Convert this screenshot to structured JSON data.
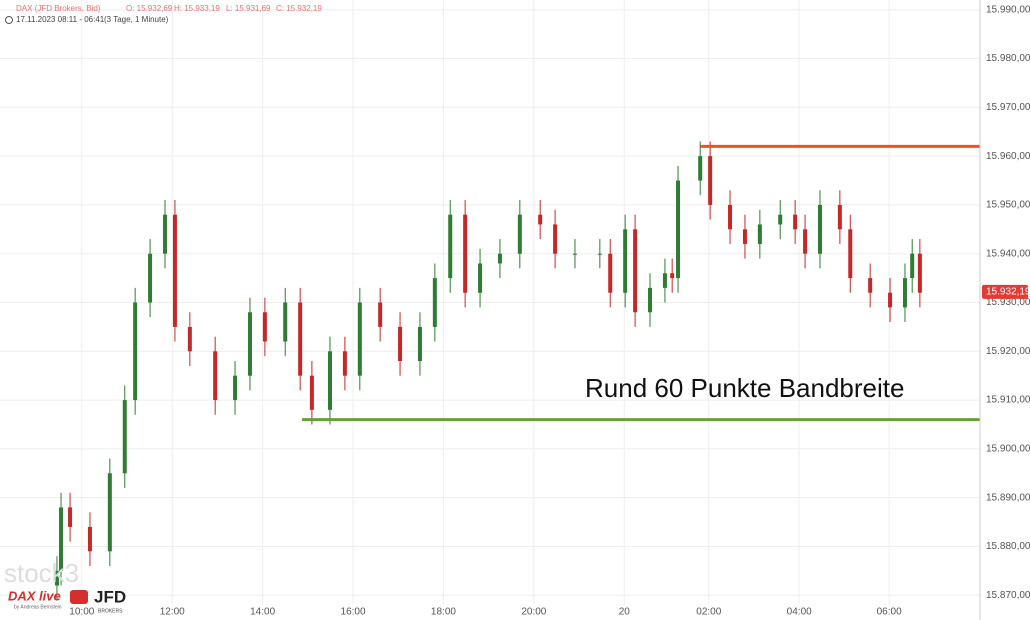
{
  "header": {
    "symbol": "DAX (JFD Brokers, Bid)",
    "open": "O: 15.932,69",
    "high": "H: 15.933,19",
    "low": "L: 15.931,69",
    "close": "C: 15.932,19",
    "range": "17.11.2023 08:11 - 06:41",
    "period": "(3 Tage, 1 Minute)"
  },
  "logos": {
    "stock": "stock3",
    "dax": "DAX live",
    "dax_sub": "by Andreas Bernstein",
    "jfd": "JFD",
    "jfd_sub": "BROKERS"
  },
  "chart_data": {
    "type": "candlestick",
    "x": [
      9.45,
      9.54,
      9.74,
      10.18,
      10.62,
      10.95,
      11.18,
      11.51,
      11.84,
      12.06,
      12.39,
      12.95,
      13.39,
      13.72,
      14.05,
      14.5,
      14.83,
      15.09,
      15.49,
      15.82,
      16.15,
      16.6,
      17.04,
      17.48,
      17.81,
      18.15,
      18.48,
      18.81,
      19.25,
      19.69,
      20.14,
      20.47,
      20.91,
      21.46,
      21.69,
      22.02,
      22.24,
      22.57,
      22.9,
      23.06,
      23.19,
      23.68,
      23.9,
      24.34,
      24.67,
      25.0,
      25.45,
      25.78,
      26.0,
      26.33,
      26.77,
      27.0,
      27.44,
      27.88,
      28.21,
      28.37,
      28.54
    ],
    "open": [
      15872,
      15875,
      15888,
      15884,
      15879,
      15895,
      15910,
      15930,
      15940,
      15948,
      15925,
      15920,
      15910,
      15915,
      15928,
      15922,
      15930,
      15915,
      15908,
      15920,
      15915,
      15930,
      15925,
      15918,
      15925,
      15935,
      15948,
      15932,
      15938,
      15940,
      15948,
      15946,
      15940,
      15940,
      15940,
      15932,
      15945,
      15928,
      15933,
      15936,
      15935,
      15955,
      15960,
      15950,
      15945,
      15942,
      15946,
      15948,
      15945,
      15940,
      15950,
      15945,
      15935,
      15932,
      15929,
      15935,
      15940
    ],
    "high": [
      15878,
      15891,
      15891,
      15887,
      15898,
      15913,
      15933,
      15943,
      15951,
      15951,
      15928,
      15923,
      15918,
      15931,
      15931,
      15933,
      15933,
      15918,
      15923,
      15923,
      15933,
      15933,
      15928,
      15928,
      15938,
      15951,
      15951,
      15941,
      15943,
      15951,
      15951,
      15949,
      15943,
      15943,
      15943,
      15948,
      15948,
      15936,
      15939,
      15939,
      15958,
      15963,
      15963,
      15953,
      15948,
      15949,
      15951,
      15951,
      15948,
      15953,
      15953,
      15948,
      15938,
      15935,
      15938,
      15943,
      15943
    ],
    "low": [
      15869,
      15872,
      15881,
      15876,
      15876,
      15892,
      15907,
      15927,
      15937,
      15922,
      15917,
      15907,
      15907,
      15912,
      15919,
      15919,
      15912,
      15905,
      15905,
      15912,
      15912,
      15922,
      15915,
      15915,
      15922,
      15932,
      15929,
      15929,
      15935,
      15937,
      15943,
      15937,
      15937,
      15937,
      15929,
      15929,
      15925,
      15925,
      15930,
      15932,
      15932,
      15952,
      15947,
      15942,
      15939,
      15939,
      15943,
      15942,
      15937,
      15937,
      15942,
      15932,
      15929,
      15926,
      15926,
      15932,
      15929
    ],
    "close": [
      15875,
      15888,
      15884,
      15879,
      15895,
      15910,
      15930,
      15940,
      15948,
      15925,
      15920,
      15910,
      15915,
      15928,
      15922,
      15930,
      15915,
      15908,
      15920,
      15915,
      15930,
      15925,
      15918,
      15925,
      15935,
      15948,
      15932,
      15938,
      15940,
      15948,
      15946,
      15940,
      15940,
      15940,
      15932,
      15945,
      15928,
      15933,
      15936,
      15935,
      15955,
      15960,
      15950,
      15945,
      15942,
      15946,
      15948,
      15945,
      15940,
      15950,
      15945,
      15935,
      15932,
      15929,
      15935,
      15940,
      15932
    ],
    "up_color": "#2e7d32",
    "down_color": "#c62828",
    "xlim": [
      8.19,
      29.87
    ],
    "ylim": [
      15868,
      15992
    ],
    "xticks": [
      {
        "value": 10,
        "label": "10:00"
      },
      {
        "value": 12,
        "label": "12:00"
      },
      {
        "value": 14,
        "label": "14:00"
      },
      {
        "value": 16,
        "label": "16:00"
      },
      {
        "value": 18,
        "label": "18:00"
      },
      {
        "value": 20,
        "label": "20:00"
      },
      {
        "value": 22,
        "label": "20"
      },
      {
        "value": 23.87,
        "label": "02:00"
      },
      {
        "value": 25.87,
        "label": "04:00"
      },
      {
        "value": 27.86,
        "label": "06:00"
      }
    ],
    "yticks": [
      {
        "value": 15870,
        "label": "15.870,00"
      },
      {
        "value": 15880,
        "label": "15.880,00"
      },
      {
        "value": 15890,
        "label": "15.890,00"
      },
      {
        "value": 15900,
        "label": "15.900,00"
      },
      {
        "value": 15910,
        "label": "15.910,00"
      },
      {
        "value": 15920,
        "label": "15.920,00"
      },
      {
        "value": 15930,
        "label": "15.930,00"
      },
      {
        "value": 15940,
        "label": "15.940,00"
      },
      {
        "value": 15950,
        "label": "15.950,00"
      },
      {
        "value": 15960,
        "label": "15.960,00"
      },
      {
        "value": 15970,
        "label": "15.970,00"
      },
      {
        "value": 15980,
        "label": "15.980,00"
      },
      {
        "value": 15990,
        "label": "15.990,00"
      }
    ],
    "grid": true,
    "last_price": {
      "value": 15932.19,
      "label": "15.932,19",
      "color": "#e53935"
    },
    "levels": [
      {
        "value": 15962,
        "x_start": 23.68,
        "color": "#f4511e"
      },
      {
        "value": 15906,
        "x_start": 14.87,
        "color": "#6a9e3a"
      }
    ],
    "annotation": "Rund 60 Punkte Bandbreite"
  }
}
